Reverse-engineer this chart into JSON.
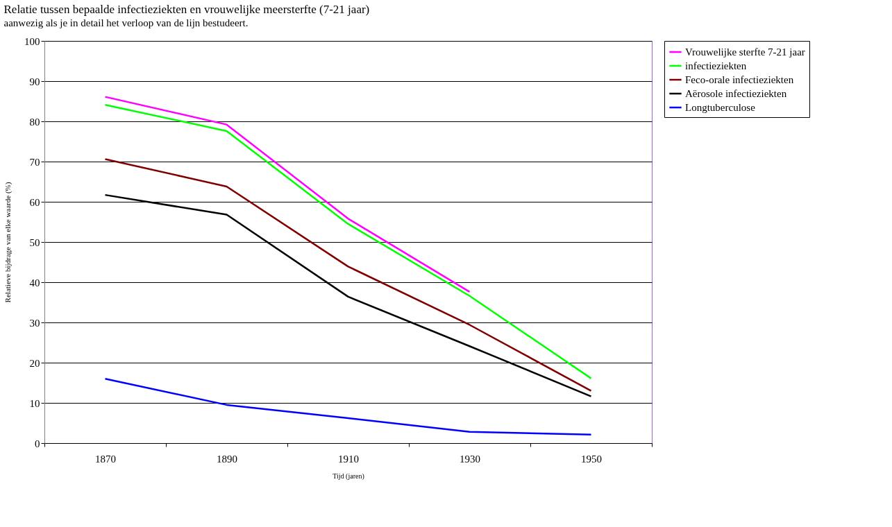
{
  "chart_data": {
    "type": "line",
    "title": "Relatie tussen bepaalde infectieziekten en vrouwelijke meersterfte (7-21 jaar)",
    "xlabel": "Tijd (jaren)",
    "ylabel": "Relatieve bijdrage van elke waarde (%)",
    "annotations": [
      "aanwezig als je in detail het verloop van de lijn bestudeert."
    ],
    "categories": [
      "1870",
      "1890",
      "1910",
      "1930",
      "1950"
    ],
    "ylim": [
      0,
      100
    ],
    "yticks": [
      0,
      10,
      20,
      30,
      40,
      50,
      60,
      70,
      80,
      90,
      100
    ],
    "grid": "y",
    "legend": "right",
    "marker": "none",
    "line_style": "solid",
    "series": [
      {
        "name": "Vrouwelijke sterfte 7-21 jaar",
        "color": "#ff00ff",
        "values": [
          86.1,
          79.2,
          55.8,
          37.6,
          null
        ]
      },
      {
        "name": "infectieziekten",
        "color": "#00ff00",
        "values": [
          84.1,
          77.6,
          54.5,
          36.6,
          16.1
        ]
      },
      {
        "name": "Feco-orale infectieziekten",
        "color": "#800000",
        "values": [
          70.6,
          63.8,
          43.9,
          29.4,
          13.0
        ]
      },
      {
        "name": "Aërosole infectieziekten",
        "color": "#000000",
        "values": [
          61.7,
          56.8,
          36.4,
          24.1,
          11.6
        ]
      },
      {
        "name": "Longtuberculose",
        "color": "#0000ff",
        "values": [
          16.0,
          9.5,
          6.2,
          2.8,
          2.1
        ]
      }
    ]
  }
}
